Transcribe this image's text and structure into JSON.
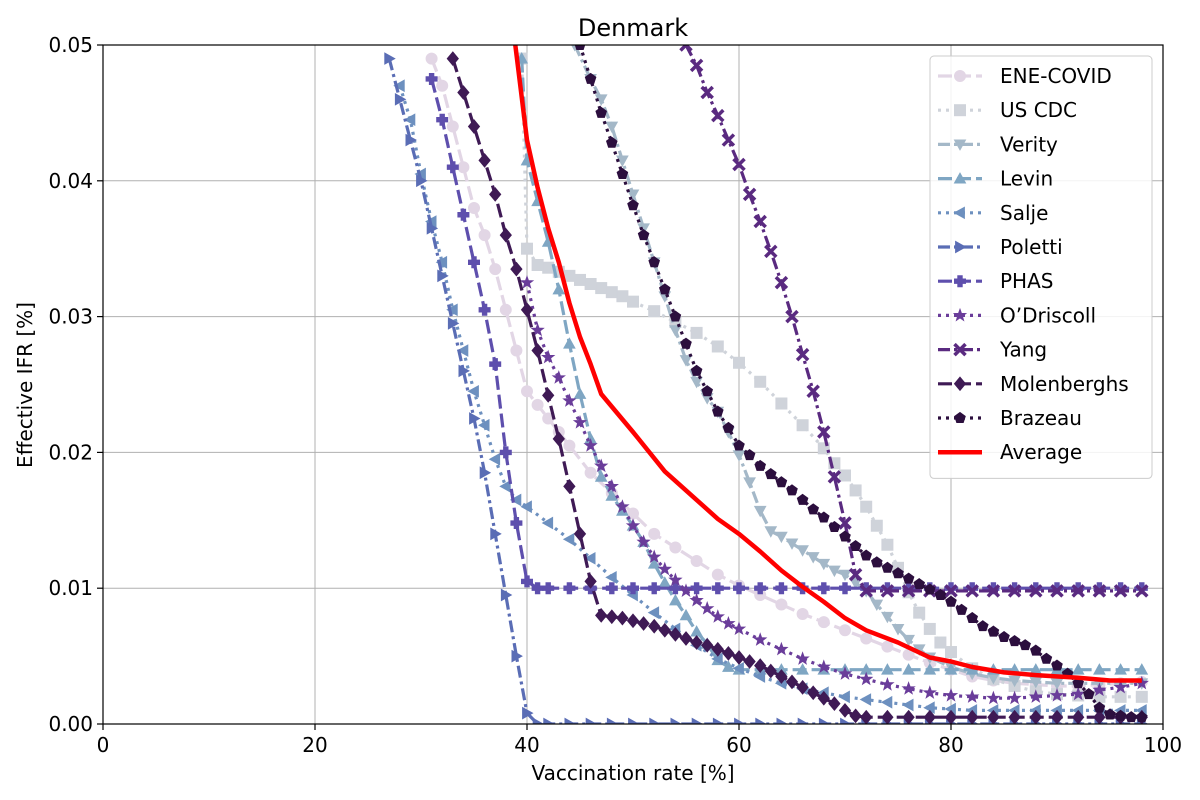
{
  "chart_data": {
    "type": "line",
    "title": "Denmark",
    "xlabel": "Vaccination rate [%]",
    "ylabel": "Effective IFR [%]",
    "xlim": [
      0,
      100
    ],
    "ylim": [
      0,
      0.05
    ],
    "xticks": [
      0,
      20,
      40,
      60,
      80,
      100
    ],
    "xtick_labels": [
      "0",
      "20",
      "40",
      "60",
      "80",
      "100"
    ],
    "yticks": [
      0,
      0.01,
      0.02,
      0.03,
      0.04,
      0.05
    ],
    "ytick_labels": [
      "0.00",
      "0.01",
      "0.02",
      "0.03",
      "0.04",
      "0.05"
    ],
    "grid": true,
    "legend_position": "upper right",
    "series": [
      {
        "name": "ENE-COVID",
        "color": "#e2d6e5",
        "marker": "circle",
        "dash": "dashed",
        "x": [
          31,
          32,
          33,
          34,
          35,
          36,
          37,
          38,
          39,
          40,
          41,
          42,
          43,
          44,
          46,
          48,
          50,
          52,
          54,
          56,
          58,
          60,
          62,
          64,
          66,
          68,
          70,
          72,
          74,
          76,
          78,
          80,
          82,
          84,
          86,
          88,
          90,
          92,
          94,
          96,
          98
        ],
        "y": [
          0.049,
          0.047,
          0.044,
          0.041,
          0.038,
          0.036,
          0.0335,
          0.0305,
          0.0275,
          0.0245,
          0.0235,
          0.0225,
          0.0215,
          0.0205,
          0.0185,
          0.017,
          0.0155,
          0.014,
          0.013,
          0.012,
          0.011,
          0.0102,
          0.0095,
          0.0088,
          0.0081,
          0.0075,
          0.0069,
          0.0063,
          0.0057,
          0.0051,
          0.0045,
          0.004,
          0.0035,
          0.0032,
          0.003,
          0.0029,
          0.0028,
          0.0028,
          0.0029,
          0.003,
          0.0031
        ]
      },
      {
        "name": "US CDC",
        "color": "#cfd3da",
        "marker": "square",
        "dash": "dotted",
        "x": [
          39.5,
          40,
          41,
          42,
          43,
          44,
          45,
          46,
          47,
          48,
          49,
          50,
          52,
          54,
          56,
          58,
          60,
          62,
          64,
          66,
          68,
          69,
          70,
          71,
          72,
          73,
          74,
          75,
          76,
          77,
          78,
          79,
          80,
          82,
          84,
          86,
          88,
          90,
          92,
          94,
          96,
          98
        ],
        "y": [
          0.049,
          0.035,
          0.0338,
          0.0336,
          0.0333,
          0.033,
          0.0327,
          0.0324,
          0.0321,
          0.0318,
          0.0315,
          0.0311,
          0.0304,
          0.0296,
          0.0288,
          0.0278,
          0.0266,
          0.0252,
          0.0236,
          0.022,
          0.0203,
          0.0192,
          0.0183,
          0.0172,
          0.016,
          0.0146,
          0.0132,
          0.0115,
          0.0097,
          0.0082,
          0.007,
          0.006,
          0.0053,
          0.0041,
          0.0033,
          0.0028,
          0.0024,
          0.0022,
          0.0021,
          0.002,
          0.002,
          0.002
        ]
      },
      {
        "name": "Verity",
        "color": "#a4b8c8",
        "marker": "triangle-down",
        "dash": "dashdot",
        "x": [
          44.5,
          46,
          47,
          48,
          49,
          50,
          51,
          52,
          53,
          54,
          55,
          56,
          57,
          58,
          59,
          60,
          61,
          62,
          63,
          64,
          65,
          66,
          67,
          68,
          69,
          70,
          71,
          72,
          73,
          74,
          75,
          76,
          77,
          78,
          80,
          82,
          84,
          86,
          88,
          90,
          92,
          94,
          96,
          98
        ],
        "y": [
          0.05,
          0.0475,
          0.046,
          0.044,
          0.0415,
          0.039,
          0.0365,
          0.034,
          0.0315,
          0.029,
          0.0268,
          0.0252,
          0.024,
          0.023,
          0.0215,
          0.0198,
          0.0178,
          0.0157,
          0.0142,
          0.0138,
          0.0133,
          0.0128,
          0.0123,
          0.0118,
          0.0113,
          0.011,
          0.0104,
          0.0098,
          0.0088,
          0.0079,
          0.007,
          0.0062,
          0.0055,
          0.0049,
          0.0042,
          0.0037,
          0.0034,
          0.0032,
          0.0031,
          0.003,
          0.003,
          0.003,
          0.003,
          0.003
        ]
      },
      {
        "name": "Levin",
        "color": "#7fa6c3",
        "marker": "triangle-up",
        "dash": "dashed",
        "x": [
          39.5,
          40,
          41,
          42,
          43,
          44,
          45,
          46,
          47,
          48,
          49,
          50,
          51,
          52,
          53,
          54,
          55,
          56,
          57,
          58,
          59,
          60,
          62,
          64,
          66,
          68,
          70,
          72,
          74,
          76,
          78,
          80,
          82,
          84,
          86,
          88,
          90,
          92,
          94,
          96,
          98
        ],
        "y": [
          0.049,
          0.0415,
          0.0385,
          0.0355,
          0.032,
          0.028,
          0.0243,
          0.021,
          0.0182,
          0.0168,
          0.0157,
          0.0146,
          0.0134,
          0.0118,
          0.0104,
          0.0091,
          0.008,
          0.0068,
          0.0059,
          0.0047,
          0.0042,
          0.004,
          0.004,
          0.004,
          0.004,
          0.004,
          0.004,
          0.004,
          0.004,
          0.004,
          0.004,
          0.004,
          0.004,
          0.004,
          0.004,
          0.004,
          0.004,
          0.004,
          0.004,
          0.004,
          0.004
        ]
      },
      {
        "name": "Salje",
        "color": "#6d90bf",
        "marker": "triangle-left",
        "dash": "dotted",
        "x": [
          28,
          29,
          30,
          31,
          32,
          33,
          34,
          35,
          36,
          37,
          38,
          39,
          40,
          42,
          44,
          46,
          48,
          50,
          52,
          54,
          56,
          58,
          60,
          62,
          64,
          66,
          68,
          70,
          72,
          74,
          76,
          78,
          80,
          82,
          84,
          86,
          88,
          90,
          92,
          94,
          96,
          98
        ],
        "y": [
          0.047,
          0.0445,
          0.0405,
          0.037,
          0.034,
          0.0305,
          0.0275,
          0.0245,
          0.022,
          0.0195,
          0.0175,
          0.0165,
          0.016,
          0.0148,
          0.0136,
          0.0122,
          0.0108,
          0.0095,
          0.0082,
          0.007,
          0.0058,
          0.0048,
          0.0041,
          0.0035,
          0.003,
          0.0026,
          0.0023,
          0.002,
          0.0018,
          0.0016,
          0.0014,
          0.0012,
          0.0011,
          0.001,
          0.001,
          0.001,
          0.001,
          0.001,
          0.001,
          0.001,
          0.001,
          0.001
        ]
      },
      {
        "name": "Poletti",
        "color": "#5a6db5",
        "marker": "triangle-right",
        "dash": "dashdot",
        "x": [
          27,
          28,
          29,
          30,
          31,
          32,
          33,
          34,
          35,
          36,
          37,
          38,
          39,
          40,
          41,
          42,
          44,
          46,
          48,
          50,
          52,
          54,
          56,
          58,
          60,
          62,
          64,
          66,
          68,
          70,
          72,
          74,
          76,
          78,
          80,
          82,
          84,
          86,
          88,
          90,
          92,
          94,
          96,
          98
        ],
        "y": [
          0.049,
          0.046,
          0.043,
          0.04,
          0.0365,
          0.033,
          0.0295,
          0.026,
          0.0225,
          0.0185,
          0.014,
          0.0095,
          0.005,
          0.0008,
          0,
          0,
          0,
          0,
          0,
          0,
          0,
          0,
          0,
          0,
          0,
          0,
          0,
          0,
          0,
          0,
          0,
          0,
          0,
          0,
          0,
          0,
          0,
          0,
          0,
          0,
          0,
          0,
          0,
          0
        ]
      },
      {
        "name": "PHAS",
        "color": "#5e4fad",
        "marker": "plus",
        "dash": "dashed",
        "x": [
          31,
          32,
          33,
          34,
          35,
          36,
          37,
          38,
          39,
          40,
          41,
          42,
          44,
          46,
          48,
          50,
          52,
          54,
          56,
          58,
          60,
          62,
          64,
          66,
          68,
          70,
          72,
          74,
          76,
          78,
          80,
          82,
          84,
          86,
          88,
          90,
          92,
          94,
          96,
          98
        ],
        "y": [
          0.0475,
          0.0445,
          0.041,
          0.0375,
          0.034,
          0.0305,
          0.0265,
          0.02,
          0.0148,
          0.0105,
          0.01,
          0.01,
          0.01,
          0.01,
          0.01,
          0.01,
          0.01,
          0.01,
          0.01,
          0.01,
          0.01,
          0.01,
          0.01,
          0.01,
          0.01,
          0.01,
          0.01,
          0.01,
          0.01,
          0.01,
          0.01,
          0.01,
          0.01,
          0.01,
          0.01,
          0.01,
          0.01,
          0.01,
          0.01,
          0.01
        ]
      },
      {
        "name": "O’Driscoll",
        "color": "#6a3d9a",
        "marker": "star",
        "dash": "dotted",
        "x": [
          40,
          41,
          42,
          43,
          44,
          45,
          46,
          47,
          48,
          49,
          50,
          51,
          52,
          53,
          54,
          55,
          56,
          57,
          58,
          59,
          60,
          62,
          64,
          66,
          68,
          70,
          72,
          74,
          76,
          78,
          80,
          82,
          84,
          86,
          88,
          90,
          92,
          94,
          96,
          98
        ],
        "y": [
          0.0325,
          0.029,
          0.027,
          0.0255,
          0.0238,
          0.0222,
          0.0205,
          0.019,
          0.0175,
          0.016,
          0.0146,
          0.0134,
          0.0123,
          0.0114,
          0.0106,
          0.0098,
          0.0091,
          0.0085,
          0.0079,
          0.0074,
          0.007,
          0.0062,
          0.0055,
          0.0048,
          0.0042,
          0.0037,
          0.0033,
          0.0029,
          0.0026,
          0.0023,
          0.0021,
          0.002,
          0.0019,
          0.0019,
          0.002,
          0.0021,
          0.0022,
          0.0025,
          0.0027,
          0.003
        ]
      },
      {
        "name": "Yang",
        "color": "#5a2a80",
        "marker": "x",
        "dash": "dashdot",
        "x": [
          55,
          56,
          57,
          58,
          59,
          60,
          61,
          62,
          63,
          64,
          65,
          66,
          67,
          68,
          69,
          70,
          71,
          72,
          74,
          76,
          78,
          80,
          82,
          84,
          86,
          88,
          90,
          92,
          94,
          96,
          98
        ],
        "y": [
          0.05,
          0.0485,
          0.0465,
          0.0448,
          0.043,
          0.0412,
          0.039,
          0.037,
          0.0348,
          0.0325,
          0.03,
          0.0272,
          0.0245,
          0.0215,
          0.0182,
          0.0148,
          0.011,
          0.0098,
          0.0098,
          0.0098,
          0.0098,
          0.0098,
          0.0098,
          0.0098,
          0.0098,
          0.0098,
          0.0098,
          0.0098,
          0.0098,
          0.0098,
          0.0098
        ]
      },
      {
        "name": "Molenberghs",
        "color": "#3f1a55",
        "marker": "diamond",
        "dash": "dashed",
        "x": [
          33,
          34,
          35,
          36,
          37,
          38,
          39,
          40,
          41,
          42,
          43,
          44,
          45,
          46,
          47,
          48,
          49,
          50,
          51,
          52,
          53,
          54,
          55,
          56,
          57,
          58,
          59,
          60,
          61,
          62,
          63,
          64,
          65,
          66,
          67,
          68,
          69,
          70,
          71,
          72,
          74,
          76,
          78,
          80,
          82,
          84,
          86,
          88,
          90,
          92,
          94,
          96,
          98
        ],
        "y": [
          0.049,
          0.0465,
          0.044,
          0.0415,
          0.039,
          0.036,
          0.0335,
          0.0305,
          0.0275,
          0.0242,
          0.021,
          0.0175,
          0.014,
          0.0105,
          0.008,
          0.0079,
          0.0078,
          0.0076,
          0.0074,
          0.0072,
          0.0069,
          0.0066,
          0.0063,
          0.006,
          0.0058,
          0.0055,
          0.0052,
          0.0049,
          0.0046,
          0.0043,
          0.0039,
          0.0035,
          0.0031,
          0.0027,
          0.0023,
          0.0019,
          0.0015,
          0.001,
          0.0006,
          0.0005,
          0.0005,
          0.0005,
          0.0005,
          0.0005,
          0.0005,
          0.0005,
          0.0005,
          0.0005,
          0.0005,
          0.0005,
          0.0005,
          0.0005,
          0.0005
        ]
      },
      {
        "name": "Brazeau",
        "color": "#2c0f3e",
        "marker": "pentagon",
        "dash": "dotted",
        "x": [
          45,
          46,
          47,
          48,
          49,
          50,
          51,
          52,
          53,
          54,
          55,
          56,
          57,
          58,
          59,
          60,
          61,
          62,
          63,
          64,
          65,
          66,
          67,
          68,
          69,
          70,
          71,
          72,
          73,
          74,
          75,
          76,
          77,
          78,
          79,
          80,
          81,
          82,
          83,
          84,
          85,
          86,
          87,
          88,
          89,
          90,
          91,
          92,
          93,
          94,
          95,
          96,
          97,
          98
        ],
        "y": [
          0.05,
          0.0475,
          0.045,
          0.0428,
          0.0405,
          0.0382,
          0.036,
          0.034,
          0.032,
          0.03,
          0.028,
          0.026,
          0.0245,
          0.023,
          0.0218,
          0.0205,
          0.0198,
          0.019,
          0.0184,
          0.0178,
          0.0172,
          0.0165,
          0.0158,
          0.0152,
          0.0145,
          0.0138,
          0.0131,
          0.0124,
          0.0119,
          0.0115,
          0.0111,
          0.0107,
          0.0103,
          0.0099,
          0.0095,
          0.009,
          0.0084,
          0.0078,
          0.0072,
          0.0068,
          0.0064,
          0.0061,
          0.0058,
          0.0054,
          0.0048,
          0.0043,
          0.0037,
          0.003,
          0.0022,
          0.0012,
          0.0007,
          0.0006,
          0.0005,
          0.0005
        ]
      },
      {
        "name": "Average",
        "color": "#ff0000",
        "marker": "none",
        "dash": "solid",
        "x": [
          38.9,
          40,
          41,
          42,
          43,
          44,
          45,
          46,
          47,
          50,
          53,
          56,
          58,
          60,
          62,
          64,
          66,
          68,
          70,
          72,
          75,
          78,
          80,
          82,
          85,
          88,
          92,
          95,
          98
        ],
        "y": [
          0.05,
          0.043,
          0.0395,
          0.0365,
          0.034,
          0.031,
          0.0285,
          0.0265,
          0.0243,
          0.0215,
          0.0186,
          0.0165,
          0.0151,
          0.014,
          0.0127,
          0.0113,
          0.0101,
          0.009,
          0.0078,
          0.0069,
          0.006,
          0.0049,
          0.0046,
          0.0042,
          0.0038,
          0.0036,
          0.0034,
          0.0032,
          0.0032
        ]
      }
    ]
  }
}
